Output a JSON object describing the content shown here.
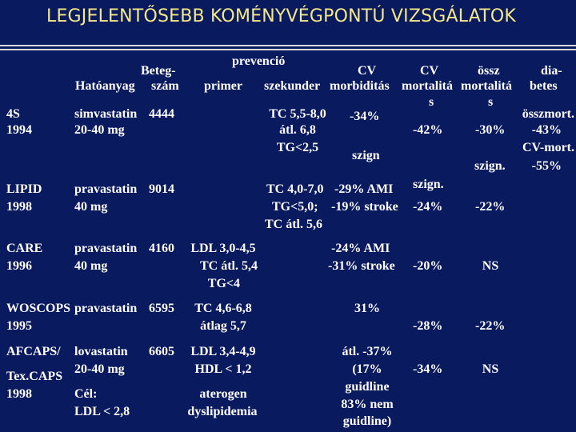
{
  "title": "LEGJELENTŐSEBB KOMÉNYVÉGPONTÚ VIZSGÁLATOK",
  "header": {
    "beteg": "Beteg-",
    "hatoanyag": "Hatóanyag",
    "szam": "szám",
    "prevencio": "prevenció",
    "primer": "primer",
    "szekunder": "szekunder",
    "cv1": "CV",
    "morbiditas": "morbiditás",
    "cv2": "CV",
    "mortalita1": "mortalitá",
    "s1": "s",
    "ossz": "össz",
    "mortalita2": "mortalitá",
    "s2": "s",
    "dia": "dia-",
    "betes": "betes"
  },
  "rows": [
    {
      "study": [
        "4S",
        "1994"
      ],
      "drug": [
        "simvastatin",
        "20-40 mg"
      ],
      "n": "4444",
      "primer": [],
      "szekunder": [
        "TC 5,5-8,0",
        "átl. 6,8",
        "TG<2,5"
      ],
      "morb": [
        "-34%",
        "szign"
      ],
      "cvmort": [
        "-42%",
        "szign."
      ],
      "ossz": [
        "-30%",
        "szign."
      ],
      "dia": [
        "összmort.",
        "-43%",
        "CV-mort.",
        "-55%"
      ]
    },
    {
      "study": [
        "LIPID",
        "1998"
      ],
      "drug": [
        "pravastatin",
        "40 mg"
      ],
      "n": "9014",
      "primer": [],
      "szekunder": [
        "TC 4,0-7,0",
        "TG<5,0;",
        "TC átl. 5,6"
      ],
      "morb": [
        "-29% AMI",
        "-19% stroke"
      ],
      "cvmort": [
        "-24%"
      ],
      "ossz": [
        "-22%"
      ],
      "dia": []
    },
    {
      "study": [
        "CARE",
        "1996"
      ],
      "drug": [
        "pravastatin",
        "40 mg"
      ],
      "n": "4160",
      "primer": [
        "LDL 3,0-4,5",
        "TC átl. 5,4",
        "TG<4"
      ],
      "szekunder": [],
      "morb": [
        "-24% AMI",
        "-31% stroke"
      ],
      "cvmort": [
        "-20%"
      ],
      "ossz": [
        "NS"
      ],
      "dia": []
    },
    {
      "study": [
        "WOSCOPS",
        "1995"
      ],
      "drug": [
        "pravastatin"
      ],
      "n": "6595",
      "primer": [
        "TC 4,6-6,8",
        "átlag 5,7"
      ],
      "szekunder": [],
      "morb": [
        "31%"
      ],
      "cvmort": [
        "-28%"
      ],
      "ossz": [
        "-22%"
      ],
      "dia": []
    },
    {
      "study": [
        "AFCAPS/",
        "Tex.CAPS",
        "1998"
      ],
      "drug": [
        "lovastatin",
        "20-40 mg",
        "Cél:",
        "LDL < 2,8"
      ],
      "n": "6605",
      "primer": [
        "LDL 3,4-4,9",
        "HDL < 1,2",
        "aterogen",
        "dyslipidemia"
      ],
      "szekunder": [],
      "morb": [
        "átl. -37%",
        "(17%",
        "guidline",
        "83% nem",
        "guidline)"
      ],
      "cvmort": [
        "-34%"
      ],
      "ossz": [
        "NS"
      ],
      "dia": []
    }
  ]
}
